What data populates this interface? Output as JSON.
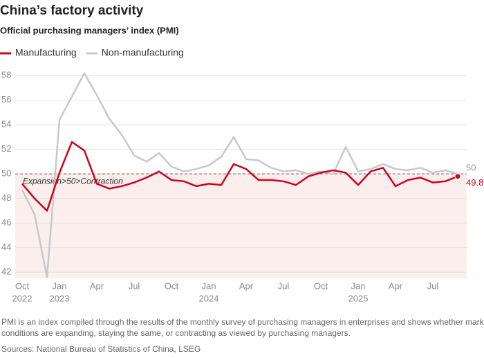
{
  "chart_data": {
    "type": "line",
    "title": "China’s factory activity",
    "subtitle": "Official purchasing managers’ index (PMI)",
    "categories": [
      "Oct",
      null,
      null,
      "Jan",
      null,
      null,
      "Apr",
      null,
      null,
      "Jul",
      null,
      null,
      "Oct",
      null,
      null,
      "Jan",
      null,
      null,
      "Apr",
      null,
      null,
      "Jul",
      null,
      null,
      "Oct",
      null,
      null,
      "Jan",
      null,
      null,
      "Apr",
      null,
      null,
      "Jul",
      null,
      null
    ],
    "year_labels": [
      "2022",
      null,
      null,
      "2023",
      null,
      null,
      null,
      null,
      null,
      null,
      null,
      null,
      null,
      null,
      null,
      "2024",
      null,
      null,
      null,
      null,
      null,
      null,
      null,
      null,
      null,
      null,
      null,
      "2025",
      null,
      null,
      null,
      null,
      null,
      null,
      null,
      null
    ],
    "series": [
      {
        "name": "Manufacturing",
        "color": "#d0021b",
        "values": [
          49.2,
          48.0,
          47.0,
          50.1,
          52.6,
          51.9,
          49.2,
          48.8,
          49.0,
          49.3,
          49.7,
          50.2,
          49.5,
          49.4,
          49.0,
          49.2,
          49.1,
          50.8,
          50.4,
          49.5,
          49.5,
          49.4,
          49.1,
          49.8,
          50.1,
          50.3,
          50.1,
          49.1,
          50.2,
          50.5,
          49.0,
          49.5,
          49.7,
          49.3,
          49.4,
          49.8
        ]
      },
      {
        "name": "Non-manufacturing",
        "color": "#c8c8c8",
        "values": [
          48.7,
          46.7,
          41.6,
          54.4,
          56.3,
          58.2,
          56.4,
          54.5,
          53.2,
          51.5,
          51.0,
          51.7,
          50.6,
          50.2,
          50.4,
          50.7,
          51.4,
          53.0,
          51.2,
          51.1,
          50.5,
          50.2,
          50.3,
          50.0,
          50.2,
          50.0,
          52.2,
          50.2,
          50.4,
          50.8,
          50.4,
          50.3,
          50.5,
          50.1,
          50.3,
          50.0
        ]
      }
    ],
    "ylim": [
      41.5,
      58.8
    ],
    "yticks": [
      42,
      44,
      46,
      48,
      50,
      52,
      54,
      56,
      58
    ],
    "grid": true,
    "threshold": 50,
    "threshold_label": "Expansion>50>Contraction",
    "contraction_color": "#fdeeee",
    "note": [
      "PMI is an index compiled through the results of the monthly survey of purchasing managers in enterprises and shows whether market",
      "conditions are expanding, staying the same, or contracting as viewed by purchasing managers."
    ],
    "source": "Sources: National Bureau of Statistics of China, LSEG"
  }
}
